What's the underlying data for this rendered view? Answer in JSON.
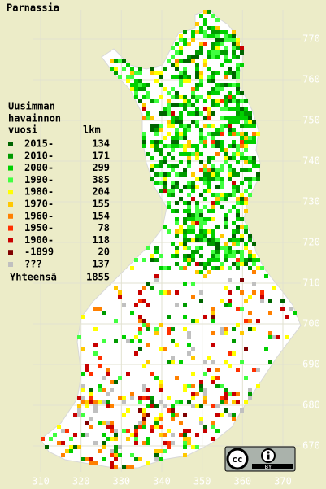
{
  "title": "Parnassia",
  "legend": {
    "heading": [
      "Uusimman",
      "havainnon",
      "vuosi"
    ],
    "count_heading": "lkm",
    "items": [
      {
        "label": "2015-",
        "count": 134,
        "color": "#006400"
      },
      {
        "label": "2010-",
        "count": 171,
        "color": "#009a00"
      },
      {
        "label": "2000-",
        "count": 299,
        "color": "#00d000"
      },
      {
        "label": "1990-",
        "count": 385,
        "color": "#40ff40"
      },
      {
        "label": "1980-",
        "count": 204,
        "color": "#ffff00"
      },
      {
        "label": "1970-",
        "count": 155,
        "color": "#ffc800"
      },
      {
        "label": "1960-",
        "count": 154,
        "color": "#ff8000"
      },
      {
        "label": "1950-",
        "count": 78,
        "color": "#ff3000"
      },
      {
        "label": "1900-",
        "count": 118,
        "color": "#c80000"
      },
      {
        "label": "-1899",
        "count": 20,
        "color": "#800000"
      },
      {
        "label": "???",
        "count": 137,
        "color": "#c0c0c0"
      }
    ],
    "total_label": "Yhteensä",
    "total": 1855
  },
  "xticks": [
    310,
    320,
    330,
    340,
    350,
    360,
    370
  ],
  "yticks": [
    770,
    760,
    750,
    740,
    730,
    720,
    710,
    700,
    690,
    680,
    670
  ],
  "badge": {
    "cc": "cc",
    "by": "BY"
  }
}
